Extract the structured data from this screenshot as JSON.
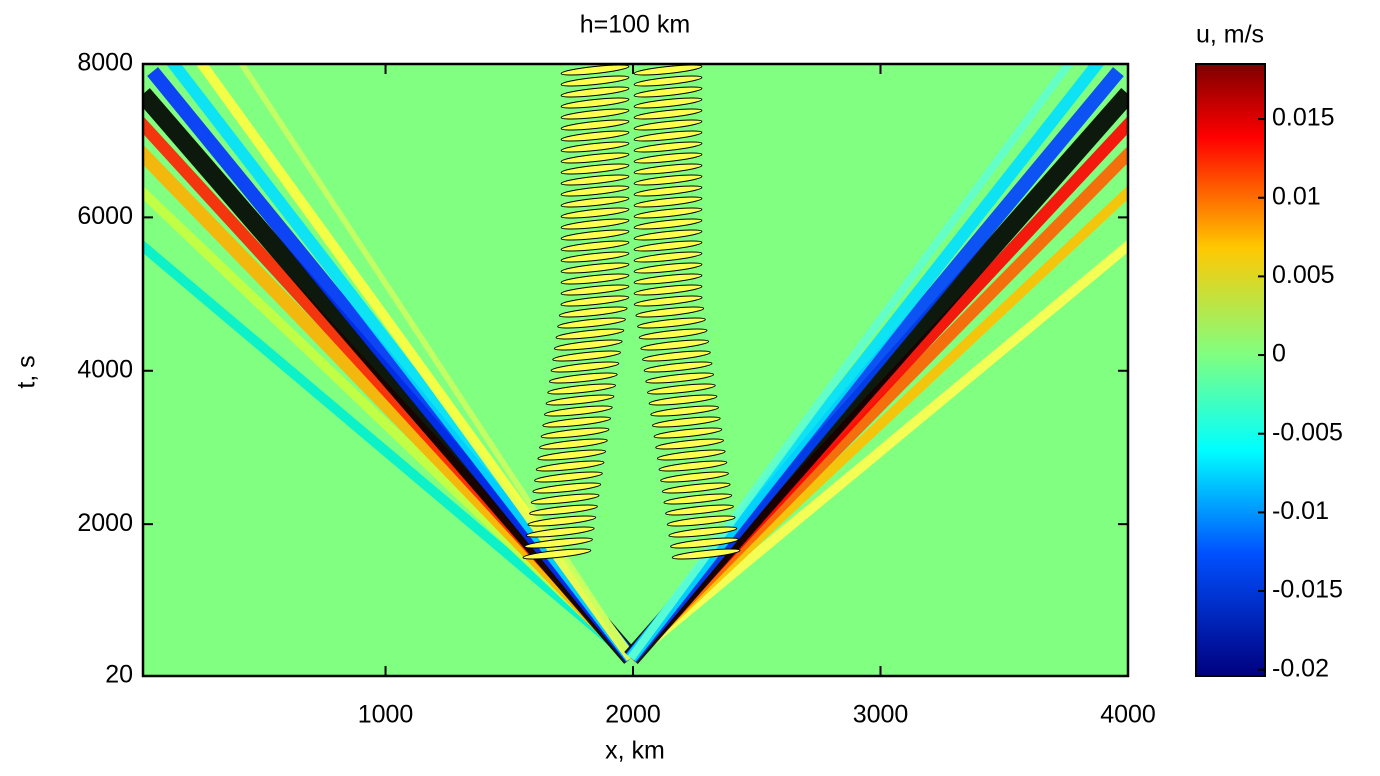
{
  "chart_data": {
    "type": "contour",
    "title": "h=100 km",
    "x_label": "x, km",
    "y_label": "t, s",
    "xlim": [
      20,
      4000
    ],
    "xticks": [
      1000,
      2000,
      3000,
      4000
    ],
    "ylim": [
      20,
      8000
    ],
    "yticks": [
      20,
      2000,
      4000,
      6000,
      8000
    ],
    "colorbar": {
      "label": "u, m/s",
      "lim": [
        -0.0204,
        0.0185
      ],
      "ticks": [
        0.015,
        0.01,
        0.005,
        0,
        -0.005,
        -0.01,
        -0.015,
        -0.02
      ]
    }
  }
}
